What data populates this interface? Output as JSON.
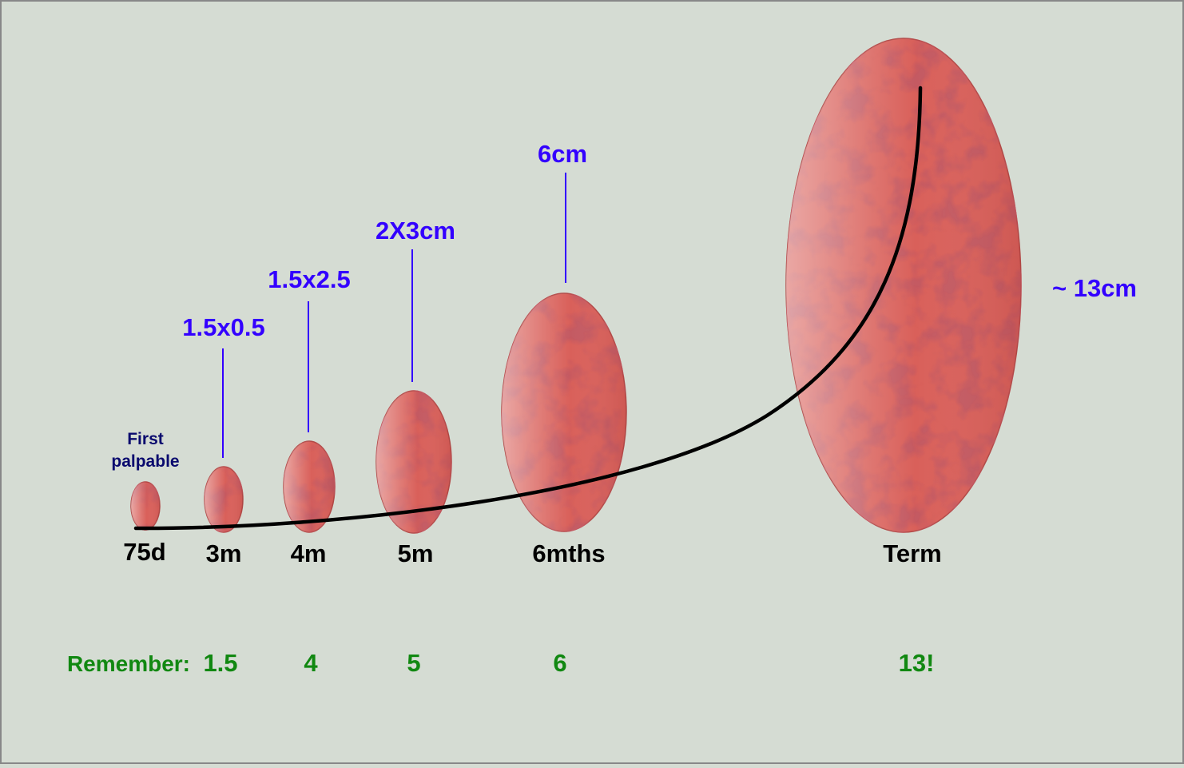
{
  "note": {
    "line1": "First",
    "line2": "palpable"
  },
  "stages": [
    {
      "id": "75d",
      "label": "75d",
      "size": "",
      "remember": "1.5",
      "remember_prefix": "Remember:"
    },
    {
      "id": "3m",
      "label": "3m",
      "size": "1.5x0.5",
      "remember": ""
    },
    {
      "id": "4m",
      "label": "4m",
      "size": "1.5x2.5",
      "remember": "4"
    },
    {
      "id": "5m",
      "label": "5m",
      "size": "2X3cm",
      "remember": "5"
    },
    {
      "id": "6mths",
      "label": "6mths",
      "size": "6cm",
      "remember": "6"
    },
    {
      "id": "term",
      "label": "Term",
      "size": "~ 13cm",
      "remember": "13!"
    }
  ],
  "colors": {
    "background": "#d5dcd3",
    "tissue": "#d9605a",
    "tissue_outline": "#b24a46",
    "size_label": "#3300ff",
    "remember": "#118811",
    "curve": "#000000"
  },
  "icons": {
    "ellipse": "ovary-ellipse",
    "curve": "growth-curve"
  }
}
